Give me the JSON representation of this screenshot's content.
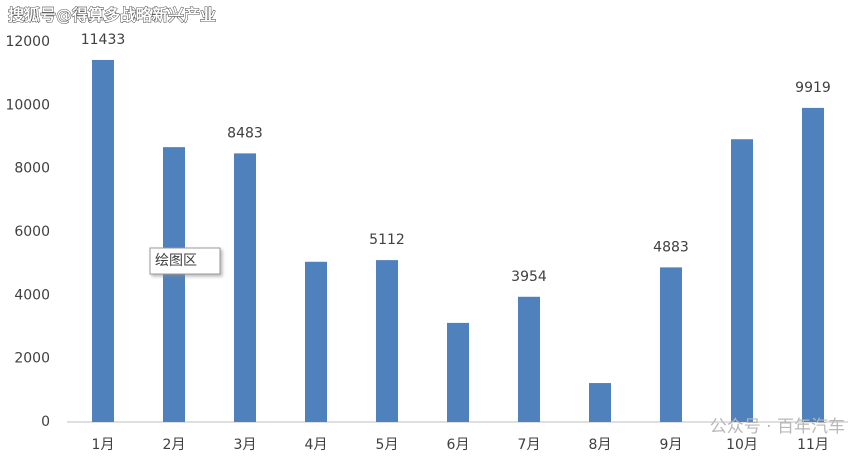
{
  "chart_data": {
    "type": "bar",
    "watermark": "搜狐号@得算多战略新兴产业",
    "watermark2": "公众号 · 百年汽车",
    "tooltip": "绘图区",
    "categories": [
      "1月",
      "2月",
      "3月",
      "4月",
      "5月",
      "6月",
      "7月",
      "8月",
      "9月",
      "10月",
      "11月"
    ],
    "values": [
      11433,
      8680,
      8483,
      5060,
      5112,
      3130,
      3954,
      1230,
      4883,
      8930,
      9919
    ],
    "value_labels": [
      "11433",
      null,
      "8483",
      null,
      "5112",
      null,
      "3954",
      null,
      "4883",
      null,
      "9919"
    ],
    "color": "#4f81bd",
    "ylim": [
      0,
      12000
    ],
    "yticks": [
      0,
      2000,
      4000,
      6000,
      8000,
      10000,
      12000
    ],
    "grid": false
  }
}
